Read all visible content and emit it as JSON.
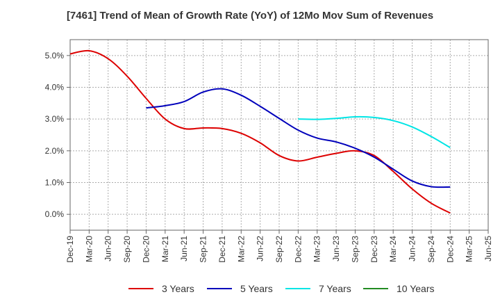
{
  "chart_data": {
    "type": "line",
    "title": "[7461]  Trend of Mean of Growth Rate (YoY) of 12Mo Mov Sum of Revenues",
    "xlabel": "",
    "ylabel": "",
    "ylim": [
      -0.5,
      5.5
    ],
    "yticks": [
      0,
      1,
      2,
      3,
      4,
      5
    ],
    "ytick_labels": [
      "0.0%",
      "1.0%",
      "2.0%",
      "3.0%",
      "4.0%",
      "5.0%"
    ],
    "x_range": [
      0,
      66
    ],
    "xtick_positions": [
      0,
      3,
      6,
      9,
      12,
      15,
      18,
      21,
      24,
      27,
      30,
      33,
      36,
      39,
      42,
      45,
      48,
      51,
      54,
      57,
      60,
      63,
      66
    ],
    "xtick_labels": [
      "Dec-19",
      "Mar-20",
      "Jun-20",
      "Sep-20",
      "Dec-20",
      "Mar-21",
      "Jun-21",
      "Sep-21",
      "Dec-21",
      "Mar-22",
      "Jun-22",
      "Sep-22",
      "Dec-22",
      "Mar-23",
      "Jun-23",
      "Sep-23",
      "Dec-23",
      "Mar-24",
      "Jun-24",
      "Sep-24",
      "Dec-24",
      "Mar-25",
      "Jun-25"
    ],
    "grid": true,
    "legend_position": "bottom",
    "series": [
      {
        "name": "3 Years",
        "color": "#dd0000",
        "x": [
          0,
          3,
          6,
          9,
          12,
          15,
          18,
          21,
          24,
          27,
          30,
          33,
          36,
          39,
          42,
          45,
          48,
          51,
          54,
          57,
          60
        ],
        "values": [
          5.05,
          5.15,
          4.9,
          4.35,
          3.65,
          3.0,
          2.7,
          2.72,
          2.7,
          2.55,
          2.25,
          1.85,
          1.68,
          1.8,
          1.92,
          2.0,
          1.85,
          1.35,
          0.8,
          0.35,
          0.04
        ]
      },
      {
        "name": "5 Years",
        "color": "#0000bb",
        "x": [
          12,
          15,
          18,
          21,
          24,
          27,
          30,
          33,
          36,
          39,
          42,
          45,
          48,
          51,
          54,
          57,
          60
        ],
        "values": [
          3.35,
          3.42,
          3.55,
          3.85,
          3.95,
          3.75,
          3.4,
          3.02,
          2.65,
          2.4,
          2.28,
          2.08,
          1.8,
          1.42,
          1.05,
          0.87,
          0.86
        ]
      },
      {
        "name": "7 Years",
        "color": "#00e5e5",
        "x": [
          36,
          39,
          42,
          45,
          48,
          51,
          54,
          57,
          60
        ],
        "values": [
          3.0,
          2.99,
          3.02,
          3.07,
          3.05,
          2.95,
          2.75,
          2.45,
          2.1
        ]
      },
      {
        "name": "10 Years",
        "color": "#228b22",
        "x": [],
        "values": []
      }
    ]
  }
}
